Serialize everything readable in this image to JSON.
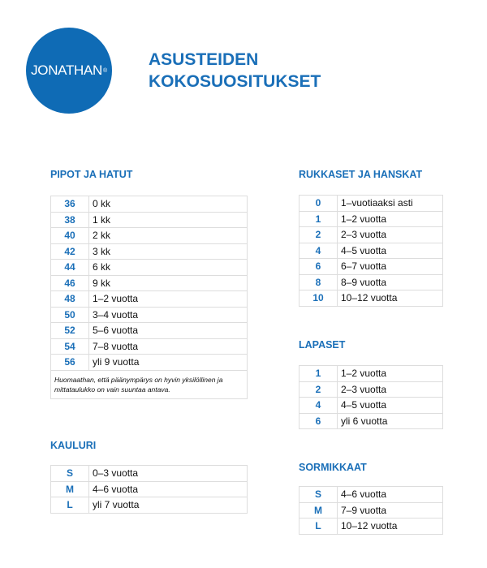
{
  "logo": {
    "text": "JONATHAN",
    "mark": "®"
  },
  "title": {
    "line1": "ASUSTEIDEN",
    "line2": "KOKOSUOSITUKSET"
  },
  "accent_color": "#1a6fb8",
  "sections": {
    "pipot": {
      "heading": "PIPOT JA HATUT",
      "rows": [
        [
          "36",
          "0 kk"
        ],
        [
          "38",
          "1 kk"
        ],
        [
          "40",
          "2 kk"
        ],
        [
          "42",
          "3 kk"
        ],
        [
          "44",
          "6 kk"
        ],
        [
          "46",
          "9 kk"
        ],
        [
          "48",
          "1–2 vuotta"
        ],
        [
          "50",
          "3–4 vuotta"
        ],
        [
          "52",
          "5–6 vuotta"
        ],
        [
          "54",
          "7–8 vuotta"
        ],
        [
          "56",
          "yli 9 vuotta"
        ]
      ],
      "note": "Huomaathan, että päänympärys on hyvin yksilöllinen ja mittataulukko on vain suuntaa antava."
    },
    "kauluri": {
      "heading": "KAULURI",
      "rows": [
        [
          "S",
          "0–3 vuotta"
        ],
        [
          "M",
          "4–6 vuotta"
        ],
        [
          "L",
          "yli 7 vuotta"
        ]
      ]
    },
    "rukkaset": {
      "heading": "RUKKASET JA HANSKAT",
      "rows": [
        [
          "0",
          "1–vuotiaaksi asti"
        ],
        [
          "1",
          "1–2 vuotta"
        ],
        [
          "2",
          "2–3 vuotta"
        ],
        [
          "4",
          "4–5 vuotta"
        ],
        [
          "6",
          "6–7 vuotta"
        ],
        [
          "8",
          "8–9 vuotta"
        ],
        [
          "10",
          "10–12 vuotta"
        ]
      ]
    },
    "lapaset": {
      "heading": "LAPASET",
      "rows": [
        [
          "1",
          "1–2 vuotta"
        ],
        [
          "2",
          "2–3 vuotta"
        ],
        [
          "4",
          "4–5 vuotta"
        ],
        [
          "6",
          "yli 6 vuotta"
        ]
      ]
    },
    "sormikkaat": {
      "heading": "SORMIKKAAT",
      "rows": [
        [
          "S",
          "4–6 vuotta"
        ],
        [
          "M",
          "7–9 vuotta"
        ],
        [
          "L",
          "10–12 vuotta"
        ]
      ]
    }
  }
}
